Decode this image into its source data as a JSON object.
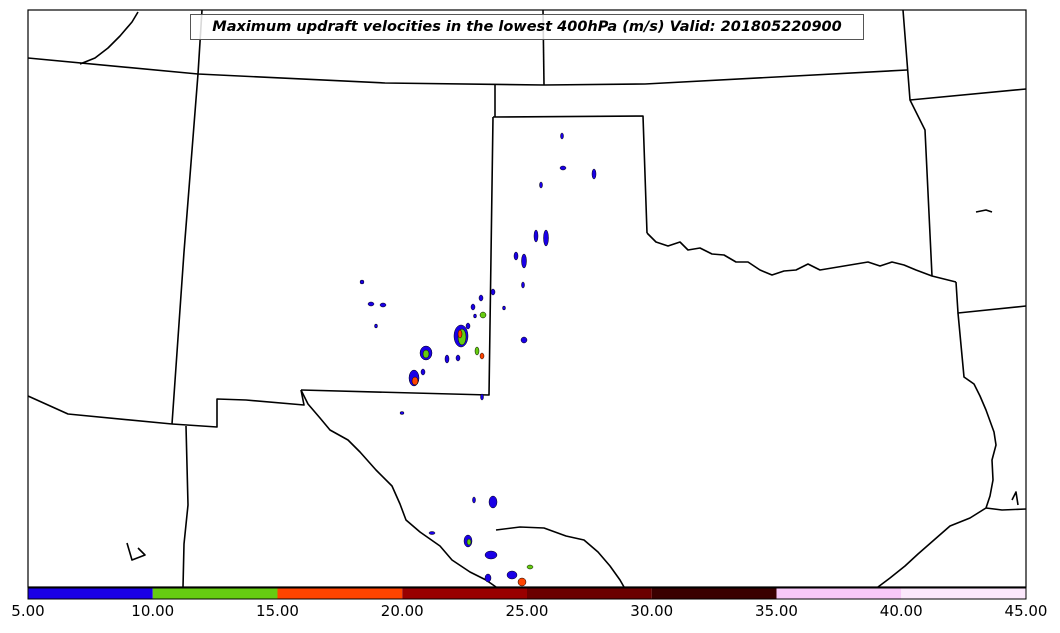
{
  "title": "Maximum updraft velocities in the lowest 400hPa (m/s) Valid: 201805220900",
  "colorbar": {
    "bins": [
      {
        "from": 5.0,
        "to": 10.0,
        "color": "#1a00e6"
      },
      {
        "from": 10.0,
        "to": 15.0,
        "color": "#66cc11"
      },
      {
        "from": 15.0,
        "to": 20.0,
        "color": "#ff4400"
      },
      {
        "from": 20.0,
        "to": 25.0,
        "color": "#990000"
      },
      {
        "from": 25.0,
        "to": 30.0,
        "color": "#6b0000"
      },
      {
        "from": 30.0,
        "to": 35.0,
        "color": "#3a0000"
      },
      {
        "from": 35.0,
        "to": 40.0,
        "color": "#f8c8f8"
      },
      {
        "from": 40.0,
        "to": 45.0,
        "color": "#fce8fc"
      }
    ],
    "ticks": [
      "5.00",
      "10.00",
      "15.00",
      "20.00",
      "25.00",
      "30.00",
      "35.00",
      "40.00",
      "45.00"
    ]
  },
  "colors": {
    "boundary": "#000000",
    "frame": "#000000",
    "background": "#ffffff"
  }
}
